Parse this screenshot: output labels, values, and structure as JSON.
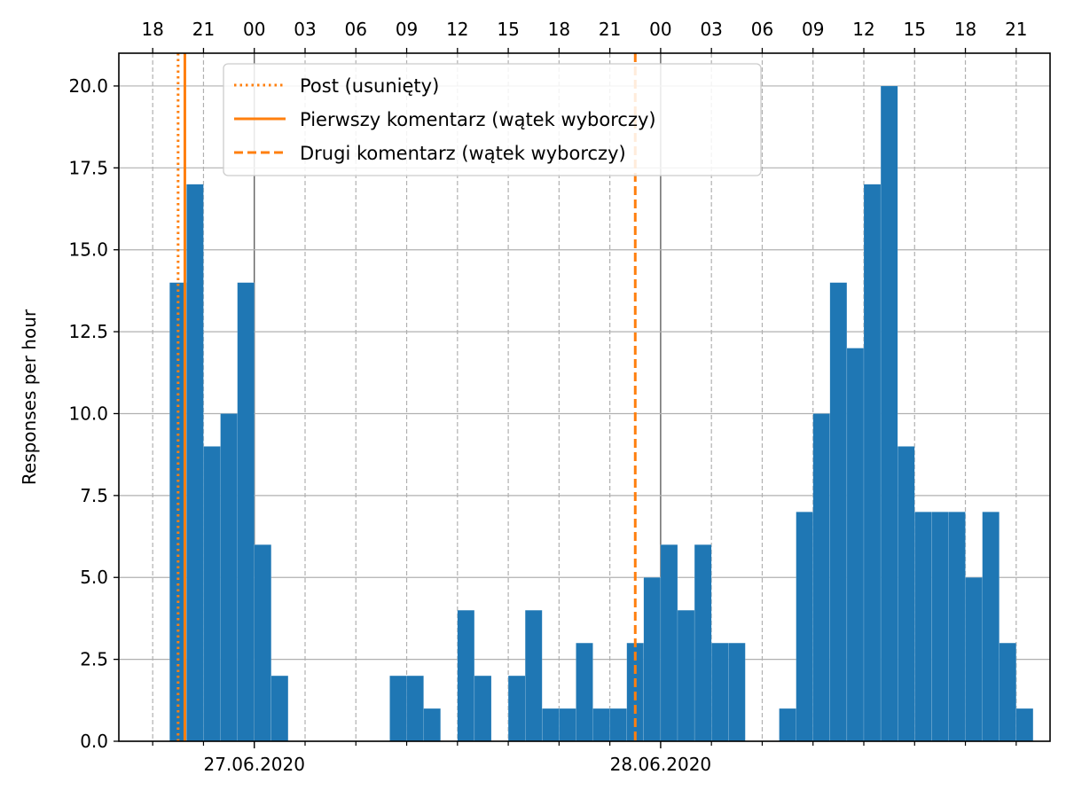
{
  "chart_data": {
    "type": "bar",
    "ylabel": "Responses per hour",
    "ylim": [
      0,
      21
    ],
    "y_ticks": [
      0,
      2.5,
      5,
      7.5,
      10,
      12.5,
      15,
      17.5,
      20
    ],
    "y_tick_labels": [
      "0.0",
      "2.5",
      "5.0",
      "7.5",
      "10.0",
      "12.5",
      "15.0",
      "17.5",
      "20.0"
    ],
    "x_start": "2020-06-26 16:00",
    "x_end": "2020-06-28 23:00",
    "x_range": [
      -8,
      47
    ],
    "bin_start": "2020-06-26 19:00",
    "bin_hours": 1,
    "values": [
      14,
      17,
      9,
      10,
      14,
      6,
      2,
      0,
      0,
      0,
      0,
      0,
      0,
      2,
      2,
      1,
      0,
      4,
      2,
      0,
      2,
      4,
      1,
      1,
      3,
      1,
      1,
      3,
      5,
      6,
      4,
      6,
      3,
      3,
      0,
      0,
      1,
      7,
      10,
      14,
      12,
      17,
      20,
      9,
      7,
      7,
      7,
      5,
      7,
      3,
      1
    ],
    "top_axis_ticks": [
      "18",
      "21",
      "00",
      "03",
      "06",
      "09",
      "12",
      "15",
      "18",
      "21",
      "00",
      "03",
      "06",
      "09",
      "12",
      "15",
      "18",
      "21"
    ],
    "top_axis_tick_hours": [
      -6,
      -3,
      0,
      3,
      6,
      9,
      12,
      15,
      18,
      21,
      24,
      27,
      30,
      33,
      36,
      39,
      42,
      45
    ],
    "day_ticks": [
      "27.06.2020",
      "28.06.2020"
    ],
    "day_tick_hours": [
      0,
      24
    ],
    "bottom_minor_tick_hours": [
      -6,
      -3,
      3,
      6,
      9,
      12,
      15,
      18,
      21,
      27,
      30,
      33,
      36,
      39,
      42,
      45
    ],
    "grid": true,
    "legend_position": "top-center",
    "bar_color": "#1f77b4",
    "event_color": "#ff7f0e",
    "events": [
      {
        "label": "Post (usunięty)",
        "hour": -4.5,
        "style": "dotted"
      },
      {
        "label": "Pierwszy komentarz (wątek wyborczy)",
        "hour": -4.1,
        "style": "solid"
      },
      {
        "label": "Drugi komentarz (wątek wyborczy)",
        "hour": 22.5,
        "style": "dashed"
      }
    ]
  }
}
